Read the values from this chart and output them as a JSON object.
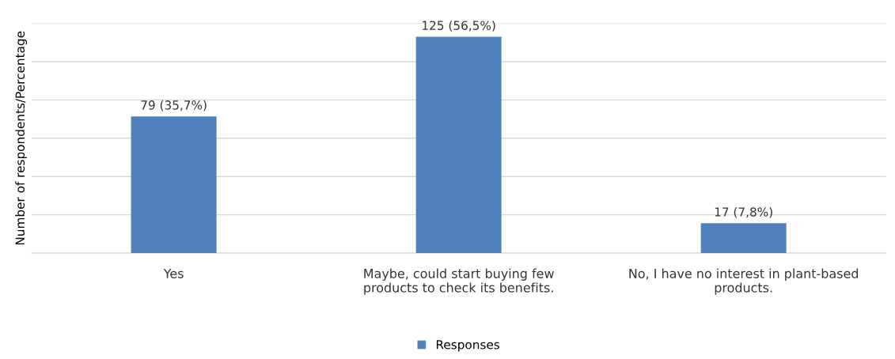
{
  "chart_data": {
    "type": "bar",
    "ylabel": "Number of respondents/Percentage",
    "categories": [
      "Yes",
      "Maybe, could start buying few\nproducts to check its benefits.",
      "No, I have no interest in plant-based\nproducts."
    ],
    "series": [
      {
        "name": "Responses",
        "color": "#4f81bd",
        "values": [
          35.7,
          56.5,
          7.8
        ],
        "value_labels": [
          "79 (35,7%)",
          "125 (56,5%)",
          "17 (7,8%)"
        ]
      }
    ],
    "ylim": [
      0,
      60
    ],
    "yticks": [
      {
        "value": 0,
        "label": null
      },
      {
        "value": 10,
        "label": null
      },
      {
        "value": 20,
        "label": null
      },
      {
        "value": 30,
        "label": null
      },
      {
        "value": 40,
        "label": null
      },
      {
        "value": 50,
        "label": null
      },
      {
        "value": 60,
        "label": null
      }
    ],
    "grid": "y",
    "legend": "bottom",
    "tick_labels": "x"
  }
}
